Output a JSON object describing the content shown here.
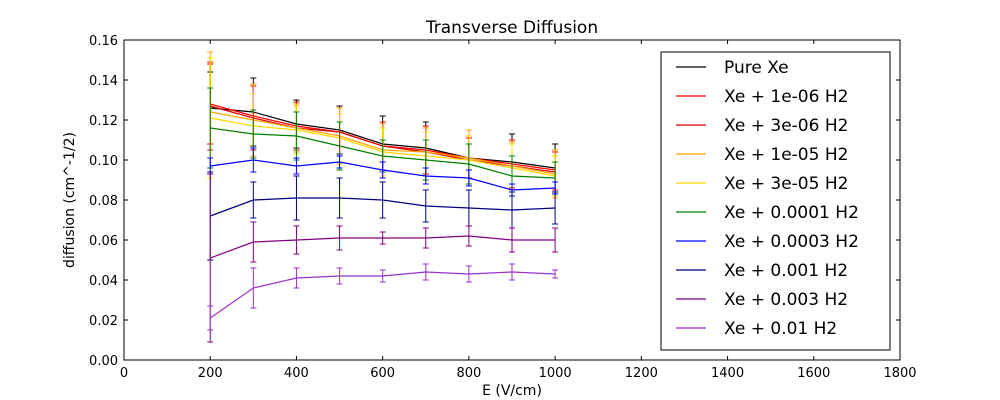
{
  "chart_data": {
    "type": "line",
    "title": "Transverse Diffusion",
    "xlabel": "E (V/cm)",
    "ylabel": "diffusion (cm^-1/2)",
    "xlim": [
      0,
      1800
    ],
    "ylim": [
      0,
      0.16
    ],
    "x_ticks": [
      "0",
      "200",
      "400",
      "600",
      "800",
      "1000",
      "1200",
      "1400",
      "1600",
      "1800"
    ],
    "y_ticks": [
      "0.00",
      "0.02",
      "0.04",
      "0.06",
      "0.08",
      "0.10",
      "0.12",
      "0.14",
      "0.16"
    ],
    "legend_position": "top-right",
    "grid": false,
    "x": [
      200,
      300,
      400,
      500,
      600,
      700,
      800,
      900,
      1000
    ],
    "series": [
      {
        "name": "Pure Xe",
        "color": "#000000",
        "values": [
          0.126,
          0.124,
          0.118,
          0.115,
          0.108,
          0.106,
          0.101,
          0.099,
          0.096
        ],
        "errors": [
          0.018,
          0.017,
          0.012,
          0.012,
          0.014,
          0.013,
          0.01,
          0.014,
          0.012
        ]
      },
      {
        "name": "Xe + 1e-06 H2",
        "color": "#ff0000",
        "values": [
          0.128,
          0.122,
          0.117,
          0.114,
          0.107,
          0.105,
          0.101,
          0.098,
          0.095
        ],
        "errors": [
          0.02,
          0.016,
          0.012,
          0.012,
          0.012,
          0.012,
          0.01,
          0.012,
          0.01
        ]
      },
      {
        "name": "Xe + 3e-06 H2",
        "color": "#dd0000",
        "values": [
          0.127,
          0.121,
          0.116,
          0.114,
          0.107,
          0.104,
          0.1,
          0.097,
          0.094
        ],
        "errors": [
          0.022,
          0.016,
          0.012,
          0.012,
          0.012,
          0.012,
          0.012,
          0.012,
          0.01
        ]
      },
      {
        "name": "Xe + 1e-05 H2",
        "color": "#ffa500",
        "values": [
          0.124,
          0.12,
          0.116,
          0.112,
          0.105,
          0.104,
          0.101,
          0.097,
          0.093
        ],
        "errors": [
          0.03,
          0.018,
          0.012,
          0.014,
          0.013,
          0.012,
          0.014,
          0.012,
          0.012
        ]
      },
      {
        "name": "Xe + 3e-05 H2",
        "color": "#ffd700",
        "values": [
          0.121,
          0.117,
          0.115,
          0.111,
          0.104,
          0.102,
          0.1,
          0.096,
          0.092
        ],
        "errors": [
          0.03,
          0.016,
          0.012,
          0.012,
          0.012,
          0.012,
          0.012,
          0.012,
          0.01
        ]
      },
      {
        "name": "Xe + 0.0001 H2",
        "color": "#008000",
        "values": [
          0.116,
          0.113,
          0.112,
          0.107,
          0.102,
          0.1,
          0.098,
          0.092,
          0.091
        ],
        "errors": [
          0.02,
          0.012,
          0.012,
          0.012,
          0.008,
          0.01,
          0.01,
          0.01,
          0.008
        ]
      },
      {
        "name": "Xe + 0.0003 H2",
        "color": "#0000ff",
        "values": [
          0.097,
          0.1,
          0.097,
          0.099,
          0.095,
          0.092,
          0.091,
          0.085,
          0.086
        ],
        "errors": [
          0.004,
          0.006,
          0.004,
          0.003,
          0.004,
          0.004,
          0.004,
          0.003,
          0.003
        ]
      },
      {
        "name": "Xe + 0.001 H2",
        "color": "#000080",
        "values": [
          0.072,
          0.08,
          0.081,
          0.081,
          0.08,
          0.077,
          0.076,
          0.075,
          0.076
        ],
        "errors": [
          0.022,
          0.009,
          0.011,
          0.01,
          0.009,
          0.008,
          0.009,
          0.009,
          0.008
        ]
      },
      {
        "name": "Xe + 0.003 H2",
        "color": "#800080",
        "values": [
          0.051,
          0.059,
          0.06,
          0.061,
          0.061,
          0.061,
          0.062,
          0.06,
          0.06
        ],
        "errors": [
          0.042,
          0.01,
          0.007,
          0.006,
          0.003,
          0.005,
          0.005,
          0.006,
          0.006
        ]
      },
      {
        "name": "Xe + 0.01 H2",
        "color": "#9932cc",
        "values": [
          0.021,
          0.036,
          0.041,
          0.042,
          0.042,
          0.044,
          0.043,
          0.044,
          0.043
        ],
        "errors": [
          0.006,
          0.01,
          0.005,
          0.004,
          0.003,
          0.004,
          0.004,
          0.004,
          0.002
        ]
      }
    ]
  }
}
